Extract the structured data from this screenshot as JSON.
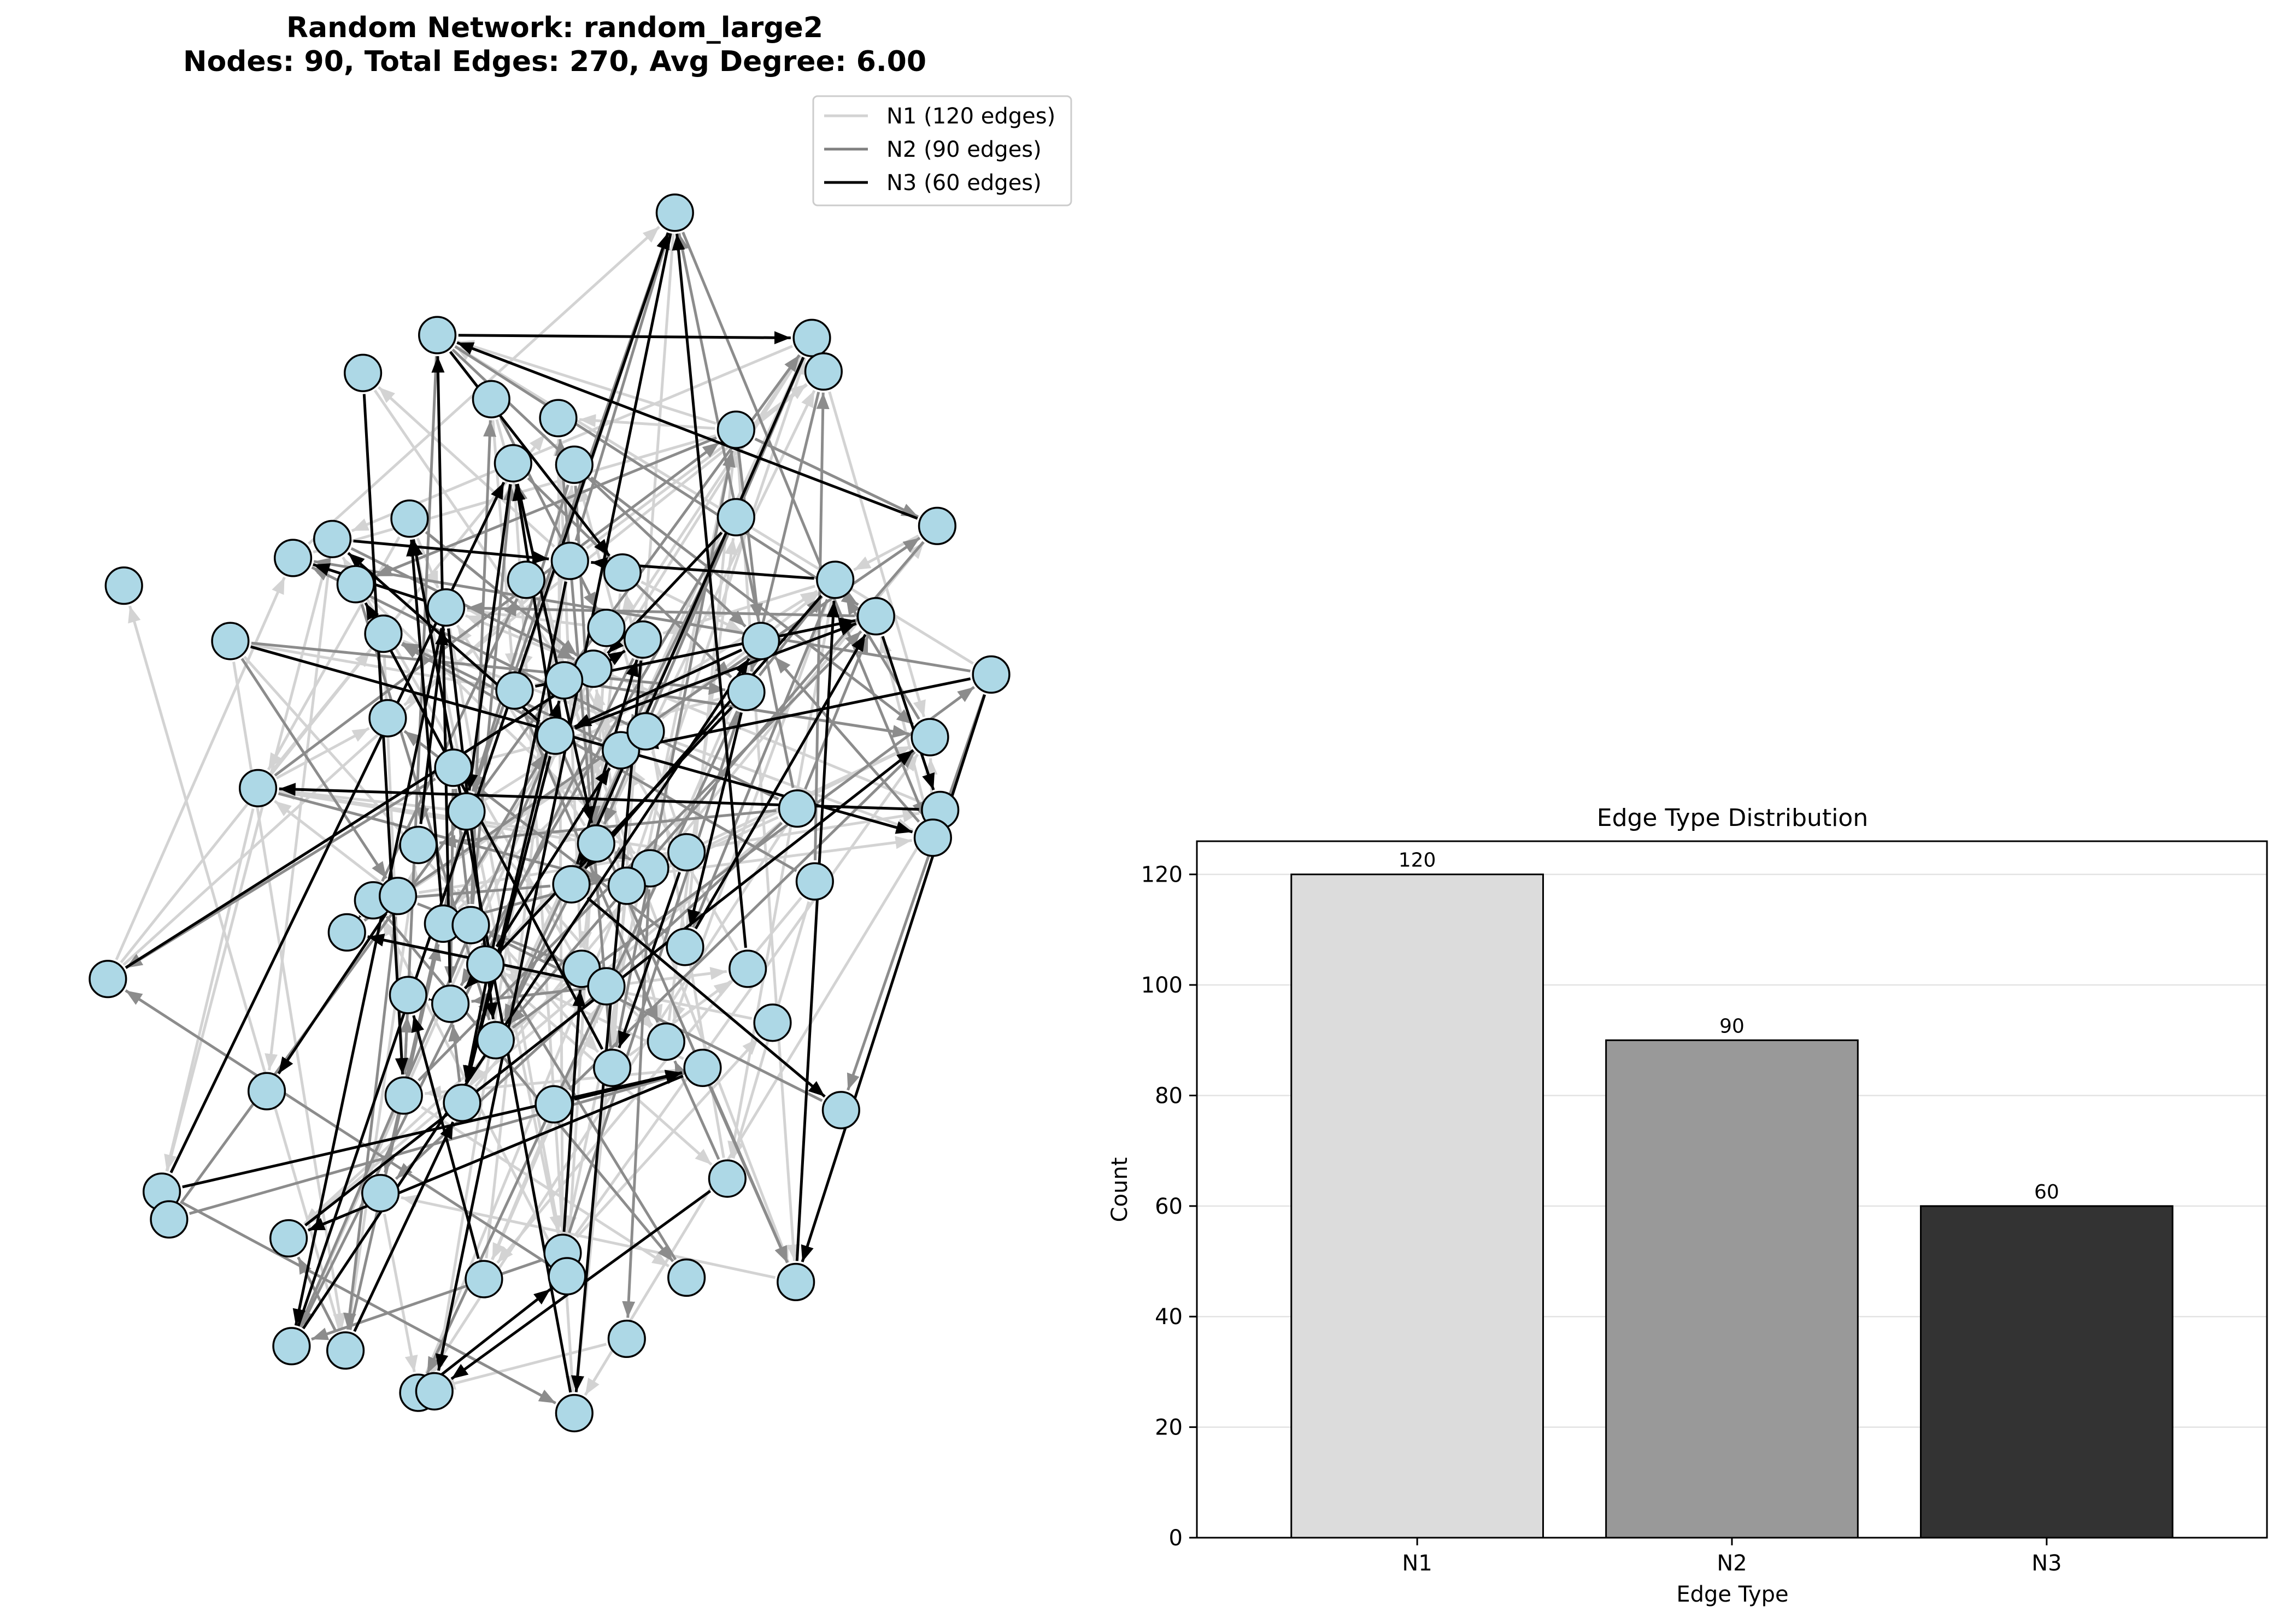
{
  "network_panel": {
    "title_line1": "Random Network: random_large2",
    "title_line2": "Nodes: 90, Total Edges: 270, Avg Degree: 6.00",
    "node_color": "#add8e6",
    "legend": [
      {
        "label": "N1 (120 edges)",
        "color": "#d3d3d3"
      },
      {
        "label": "N2 (90 edges)",
        "color": "#808080"
      },
      {
        "label": "N3 (60 edges)",
        "color": "#000000"
      }
    ]
  },
  "chart_data": {
    "type": "bar",
    "title": "Edge Type Distribution",
    "xlabel": "Edge Type",
    "ylabel": "Count",
    "categories": [
      "N1",
      "N2",
      "N3"
    ],
    "values": [
      120,
      90,
      60
    ],
    "data_labels": [
      "120",
      "90",
      "60"
    ],
    "bar_colors": [
      "#dcdcdc",
      "#999999",
      "#333333"
    ],
    "ylim": [
      0,
      126
    ],
    "yticks": [
      0,
      20,
      40,
      60,
      80,
      100,
      120
    ],
    "ytick_labels": [
      "0",
      "20",
      "40",
      "60",
      "80",
      "100",
      "120"
    ],
    "grid": "horizontal"
  }
}
